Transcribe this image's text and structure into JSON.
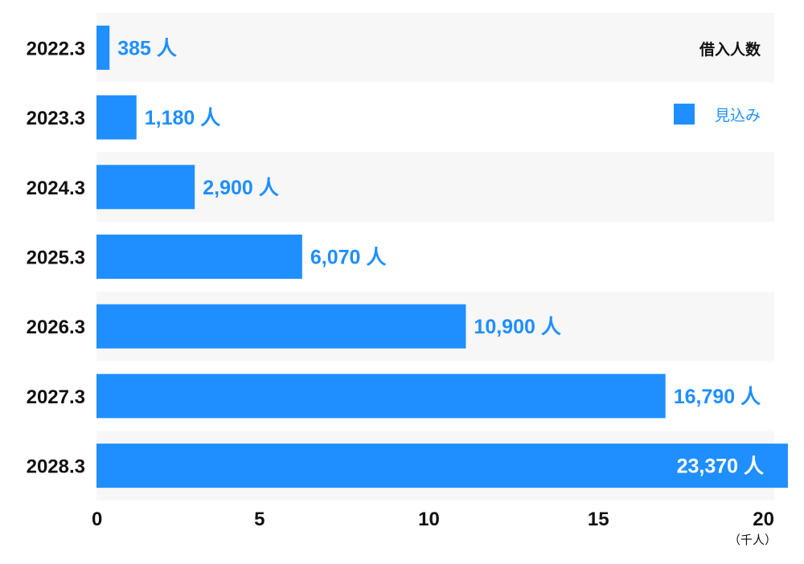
{
  "chart_data": {
    "type": "bar",
    "orientation": "horizontal",
    "categories": [
      "2022.3",
      "2023.3",
      "2024.3",
      "2025.3",
      "2026.3",
      "2027.3",
      "2028.3"
    ],
    "values": [
      385,
      1180,
      2900,
      6070,
      10900,
      16790,
      23370
    ],
    "value_labels": [
      "385 人",
      "1,180 人",
      "2,900 人",
      "6,070 人",
      "10,900 人",
      "16,790 人",
      "23,370 人"
    ],
    "title": "借入人数",
    "xlabel": "（千人）",
    "ylabel": "",
    "xlim": [
      0,
      20
    ],
    "xticks": [
      "0",
      "5",
      "10",
      "15",
      "20"
    ],
    "legend": [
      {
        "name": "見込み",
        "color": "#1f8fff"
      }
    ],
    "legend_position": "top-right",
    "grid": false,
    "bar_color": "#1f8fff",
    "band_color": "#f7f7f7"
  }
}
